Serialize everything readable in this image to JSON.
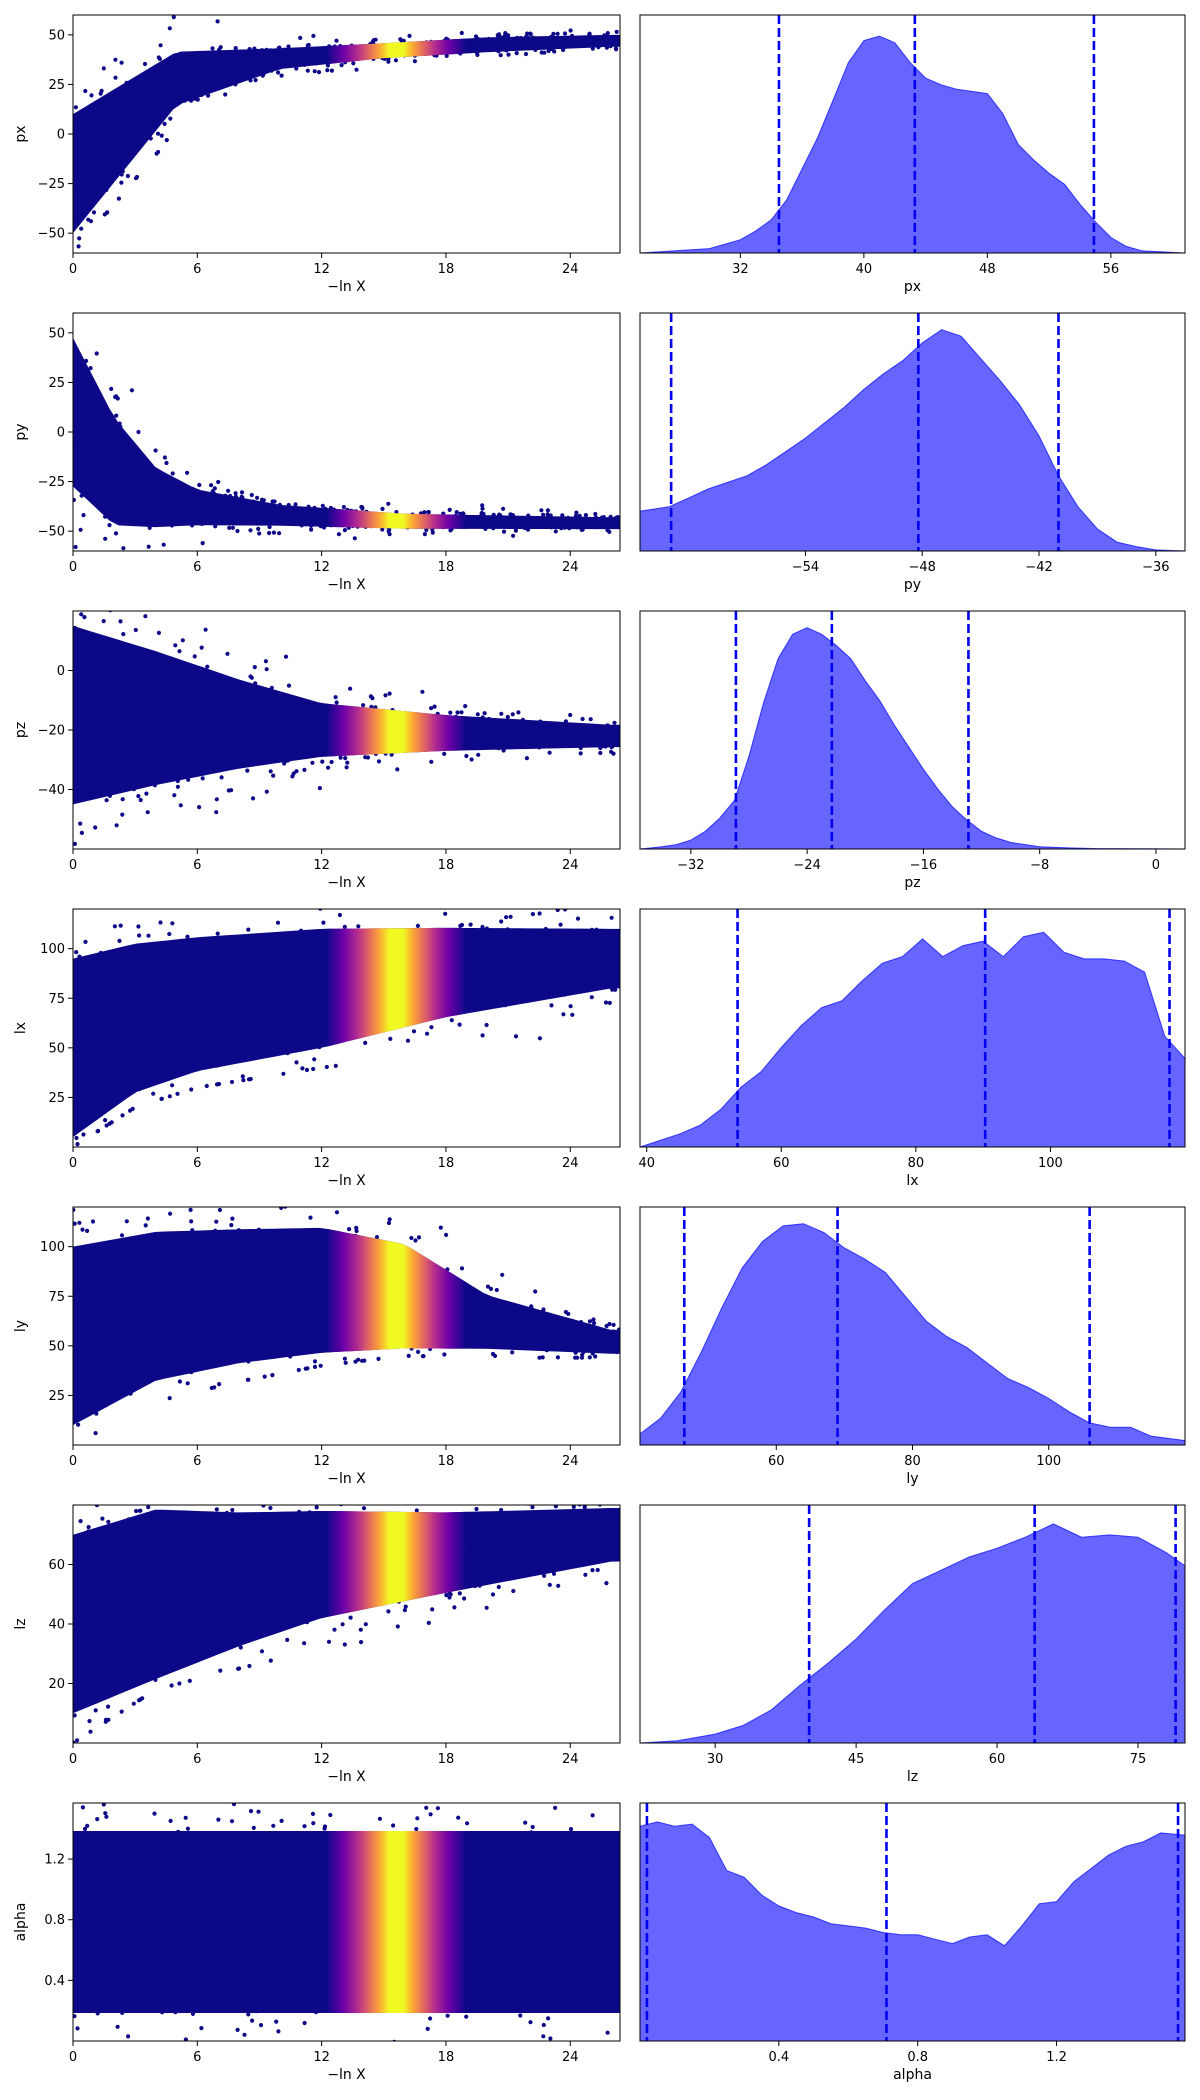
{
  "figure": {
    "trace_xlabel": "−ln X",
    "trace_xticks": [
      "0",
      "6",
      "12",
      "18",
      "24"
    ],
    "trace_xvalues": [
      0,
      6,
      12,
      18,
      24
    ],
    "trace_xlim": [
      0,
      26.4
    ],
    "colormap": [
      "#0d0887",
      "#6a00a8",
      "#b12a90",
      "#e16462",
      "#fca636",
      "#f0f921"
    ],
    "kde_fill": "#0000ff",
    "quantile_line": "#0000ee"
  },
  "chart_data": [
    {
      "type": "scatter",
      "param": "px",
      "ylabel": "px",
      "ylim": [
        -60,
        60
      ],
      "yticks": [
        -50,
        -25,
        0,
        25,
        50
      ],
      "center": [
        0,
        5,
        10,
        15,
        20,
        26
      ],
      "center_y": [
        -20,
        28,
        38,
        42,
        45,
        47
      ],
      "half_width": [
        40,
        18,
        7,
        5,
        5,
        4
      ],
      "lower_bound": [
        -60,
        2,
        28,
        34,
        38,
        40
      ],
      "end_x": 26.4,
      "hot_x": 15.6
    },
    {
      "type": "area",
      "param": "px",
      "xlabel": "px",
      "xlim": [
        25.5,
        60.8
      ],
      "xticks": [
        32,
        40,
        48,
        56
      ],
      "quantiles": [
        34.5,
        43.3,
        54.9
      ],
      "kde_x": [
        25.5,
        30,
        32,
        33,
        34,
        35,
        36,
        37,
        38,
        39,
        40,
        41,
        42,
        43,
        44,
        45,
        46,
        47,
        48,
        49,
        50,
        51,
        52,
        53,
        54,
        55,
        56,
        57,
        58,
        60.8
      ],
      "kde_y": [
        0,
        0.02,
        0.06,
        0.1,
        0.15,
        0.24,
        0.38,
        0.52,
        0.69,
        0.86,
        0.96,
        0.98,
        0.95,
        0.86,
        0.79,
        0.76,
        0.74,
        0.73,
        0.72,
        0.63,
        0.49,
        0.42,
        0.36,
        0.31,
        0.22,
        0.14,
        0.07,
        0.03,
        0.01,
        0
      ]
    },
    {
      "type": "scatter",
      "param": "py",
      "ylabel": "py",
      "ylim": [
        -60,
        60
      ],
      "yticks": [
        -50,
        -25,
        0,
        25,
        50
      ],
      "center": [
        0,
        2,
        4,
        6,
        10,
        16,
        26
      ],
      "center_y": [
        10,
        -20,
        -33,
        -38,
        -42,
        -45,
        -46
      ],
      "half_width": [
        50,
        36,
        20,
        12,
        7,
        5,
        4
      ],
      "upper_bound": [
        60,
        55,
        8,
        -20,
        -30,
        -34,
        -42
      ],
      "end_x": 26.4,
      "hot_x": 15.6
    },
    {
      "type": "area",
      "param": "py",
      "xlabel": "py",
      "xlim": [
        -62.5,
        -34.5
      ],
      "xticks": [
        -54,
        -48,
        -42,
        -36
      ],
      "quantiles": [
        -60.9,
        -48.2,
        -41
      ],
      "kde_x": [
        -62.5,
        -61,
        -60,
        -59,
        -58,
        -57,
        -56,
        -55,
        -54,
        -53,
        -52,
        -51,
        -50,
        -49,
        -48,
        -47,
        -46,
        -45,
        -44,
        -43,
        -42,
        -41,
        -40,
        -39,
        -38,
        -37,
        -36,
        -34.5
      ],
      "kde_y": [
        0.18,
        0.2,
        0.24,
        0.28,
        0.31,
        0.34,
        0.39,
        0.45,
        0.51,
        0.58,
        0.65,
        0.73,
        0.8,
        0.86,
        0.94,
        1.0,
        0.97,
        0.87,
        0.77,
        0.66,
        0.52,
        0.34,
        0.2,
        0.1,
        0.04,
        0.02,
        0.005,
        0
      ]
    },
    {
      "type": "scatter",
      "param": "pz",
      "ylabel": "pz",
      "ylim": [
        -60,
        20
      ],
      "yticks": [
        -40,
        -20,
        0
      ],
      "center": [
        0,
        4,
        8,
        12,
        18,
        26
      ],
      "center_y": [
        -15,
        -16,
        -18,
        -20,
        -21,
        -22
      ],
      "half_width": [
        40,
        30,
        20,
        12,
        8,
        5
      ],
      "end_x": 26.4,
      "hot_x": 15.6
    },
    {
      "type": "area",
      "param": "pz",
      "xlabel": "pz",
      "xlim": [
        -35.5,
        2
      ],
      "xticks": [
        -32,
        -24,
        -16,
        -8,
        0
      ],
      "quantiles": [
        -28.9,
        -22.3,
        -12.9
      ],
      "kde_x": [
        -35.5,
        -34,
        -33,
        -32,
        -31,
        -30,
        -29,
        -28,
        -27,
        -26,
        -25,
        -24,
        -23,
        -22,
        -21,
        -20,
        -19,
        -18,
        -17,
        -16,
        -15,
        -14,
        -13,
        -12,
        -11,
        -10,
        -8,
        -6,
        -4,
        2
      ],
      "kde_y": [
        0,
        0.01,
        0.02,
        0.04,
        0.08,
        0.14,
        0.22,
        0.42,
        0.66,
        0.86,
        0.97,
        1.0,
        0.97,
        0.92,
        0.86,
        0.76,
        0.67,
        0.56,
        0.46,
        0.36,
        0.27,
        0.19,
        0.13,
        0.08,
        0.05,
        0.03,
        0.01,
        0.005,
        0.002,
        0
      ]
    },
    {
      "type": "scatter",
      "param": "lx",
      "ylabel": "lx",
      "ylim": [
        0,
        120
      ],
      "yticks": [
        25,
        50,
        75,
        100
      ],
      "center": [
        0,
        3,
        6,
        12,
        18,
        26
      ],
      "center_y": [
        50,
        65,
        72,
        80,
        88,
        95
      ],
      "half_width": [
        60,
        50,
        45,
        40,
        30,
        20
      ],
      "lower_bound": [
        0,
        20,
        30,
        40,
        48,
        60
      ],
      "end_x": 26.4,
      "hot_x": 15.6
    },
    {
      "type": "area",
      "param": "lx",
      "xlabel": "lx",
      "xlim": [
        39,
        120
      ],
      "xticks": [
        40,
        60,
        80,
        100
      ],
      "quantiles": [
        53.5,
        90.3,
        117.7
      ],
      "kde_x": [
        39,
        42,
        45,
        48,
        51,
        54,
        57,
        60,
        63,
        66,
        69,
        72,
        75,
        78,
        81,
        84,
        87,
        90,
        93,
        96,
        99,
        102,
        105,
        108,
        111,
        114,
        117,
        120
      ],
      "kde_y": [
        0,
        0.03,
        0.06,
        0.1,
        0.17,
        0.27,
        0.34,
        0.45,
        0.55,
        0.63,
        0.66,
        0.75,
        0.83,
        0.86,
        0.94,
        0.86,
        0.91,
        0.93,
        0.86,
        0.95,
        0.97,
        0.88,
        0.85,
        0.85,
        0.84,
        0.79,
        0.5,
        0.4
      ]
    },
    {
      "type": "scatter",
      "param": "ly",
      "ylabel": "ly",
      "ylim": [
        0,
        120
      ],
      "yticks": [
        25,
        50,
        75,
        100
      ],
      "center": [
        0,
        4,
        8,
        12,
        16,
        20,
        26
      ],
      "center_y": [
        55,
        70,
        75,
        78,
        75,
        62,
        52
      ],
      "half_width": [
        60,
        50,
        45,
        42,
        35,
        18,
        8
      ],
      "lower_bound": [
        0,
        22,
        32,
        40,
        45,
        44,
        44
      ],
      "end_x": 26.4,
      "hot_x": 15.6
    },
    {
      "type": "area",
      "param": "ly",
      "xlabel": "ly",
      "xlim": [
        40,
        120
      ],
      "xticks": [
        60,
        80,
        100
      ],
      "quantiles": [
        46.5,
        69,
        106
      ],
      "kde_x": [
        40,
        43,
        46,
        49,
        52,
        55,
        58,
        61,
        64,
        67,
        70,
        73,
        76,
        79,
        82,
        85,
        88,
        91,
        94,
        97,
        100,
        103,
        106,
        109,
        112,
        115,
        120
      ],
      "kde_y": [
        0.05,
        0.12,
        0.24,
        0.42,
        0.62,
        0.8,
        0.92,
        0.99,
        1.0,
        0.96,
        0.89,
        0.84,
        0.78,
        0.67,
        0.56,
        0.49,
        0.44,
        0.37,
        0.3,
        0.26,
        0.21,
        0.15,
        0.1,
        0.08,
        0.08,
        0.04,
        0.02
      ]
    },
    {
      "type": "scatter",
      "param": "lz",
      "ylabel": "lz",
      "ylim": [
        0,
        80
      ],
      "yticks": [
        20,
        40,
        60
      ],
      "center": [
        0,
        4,
        8,
        12,
        18,
        26
      ],
      "center_y": [
        40,
        50,
        55,
        60,
        64,
        70
      ],
      "half_width": [
        40,
        38,
        30,
        24,
        18,
        12
      ],
      "lower_bound": [
        0,
        18,
        25,
        32,
        38,
        50
      ],
      "end_x": 26.4,
      "hot_x": 15.6
    },
    {
      "type": "area",
      "param": "lz",
      "xlabel": "lz",
      "xlim": [
        22,
        80
      ],
      "xticks": [
        30,
        45,
        60,
        75
      ],
      "quantiles": [
        40,
        64,
        79
      ],
      "kde_x": [
        22,
        26,
        30,
        33,
        36,
        39,
        42,
        45,
        48,
        51,
        54,
        57,
        60,
        63,
        66,
        69,
        72,
        75,
        78,
        80
      ],
      "kde_y": [
        0,
        0.01,
        0.04,
        0.08,
        0.15,
        0.26,
        0.36,
        0.47,
        0.6,
        0.72,
        0.78,
        0.84,
        0.88,
        0.93,
        0.99,
        0.93,
        0.94,
        0.93,
        0.86,
        0.8
      ]
    },
    {
      "type": "scatter",
      "param": "alpha",
      "ylabel": "alpha",
      "ylim": [
        0,
        1.57
      ],
      "yticks": [
        0.4,
        0.8,
        1.2
      ],
      "center": [
        0,
        26
      ],
      "center_y": [
        0.785,
        0.785
      ],
      "half_width": [
        0.8,
        0.8
      ],
      "end_x": 26.4,
      "hot_x": 15.6
    },
    {
      "type": "area",
      "param": "alpha",
      "xlabel": "alpha",
      "xlim": [
        0,
        1.57
      ],
      "xticks": [
        0.4,
        0.8,
        1.2
      ],
      "quantiles": [
        0.02,
        0.71,
        1.55
      ],
      "kde_x": [
        0,
        0.05,
        0.1,
        0.15,
        0.2,
        0.25,
        0.3,
        0.35,
        0.4,
        0.45,
        0.5,
        0.55,
        0.6,
        0.65,
        0.7,
        0.75,
        0.8,
        0.85,
        0.9,
        0.95,
        1.0,
        1.05,
        1.1,
        1.15,
        1.2,
        1.25,
        1.3,
        1.35,
        1.4,
        1.45,
        1.5,
        1.57
      ],
      "kde_y": [
        0.97,
        0.99,
        0.97,
        0.98,
        0.92,
        0.77,
        0.74,
        0.66,
        0.61,
        0.58,
        0.56,
        0.53,
        0.52,
        0.51,
        0.49,
        0.48,
        0.48,
        0.46,
        0.44,
        0.47,
        0.48,
        0.43,
        0.52,
        0.62,
        0.63,
        0.72,
        0.78,
        0.84,
        0.88,
        0.9,
        0.94,
        0.93
      ]
    }
  ]
}
